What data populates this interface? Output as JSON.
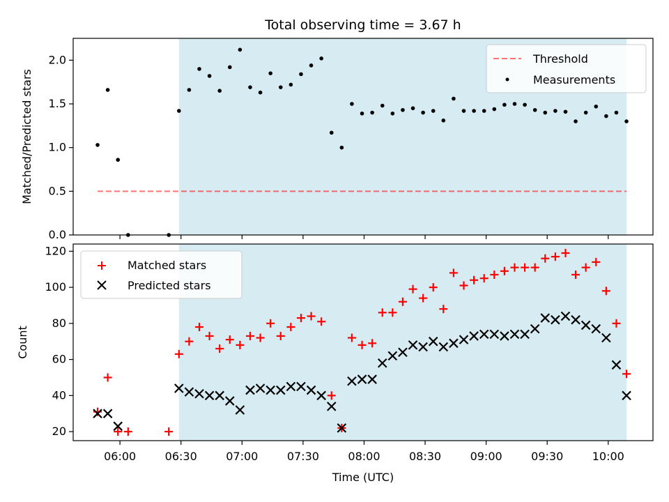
{
  "chart_data": [
    {
      "type": "scatter",
      "title": "Total observing time = 3.67 h",
      "xlabel": "",
      "ylabel": "Matched/Predicted stars",
      "ylim": [
        0,
        2.25
      ],
      "yticks": [
        "0.0",
        "0.5",
        "1.0",
        "1.5",
        "2.0"
      ],
      "yticks_values": [
        0,
        0.5,
        1.0,
        1.5,
        2.0
      ],
      "xlim": [
        "05:37",
        "10:22"
      ],
      "highlight_span": [
        "06:29",
        "10:09"
      ],
      "highlight_color": "#add8e6",
      "legend_position": "upper right",
      "threshold": {
        "name": "Threshold",
        "value": 0.5,
        "x_range": [
          "05:49",
          "10:09"
        ],
        "color": "#ff0000",
        "style": "dashed"
      },
      "series": [
        {
          "name": "Measurements",
          "color": "#000000",
          "marker": "dot",
          "x": [
            "05:49",
            "05:54",
            "05:59",
            "06:04",
            "06:24",
            "06:29",
            "06:34",
            "06:39",
            "06:44",
            "06:49",
            "06:54",
            "06:59",
            "07:04",
            "07:09",
            "07:14",
            "07:19",
            "07:24",
            "07:29",
            "07:34",
            "07:39",
            "07:44",
            "07:49",
            "07:54",
            "07:59",
            "08:04",
            "08:09",
            "08:14",
            "08:19",
            "08:24",
            "08:29",
            "08:34",
            "08:39",
            "08:44",
            "08:49",
            "08:54",
            "08:59",
            "09:04",
            "09:09",
            "09:14",
            "09:19",
            "09:24",
            "09:29",
            "09:34",
            "09:39",
            "09:44",
            "09:49",
            "09:54",
            "09:59",
            "10:04",
            "10:09"
          ],
          "y": [
            1.03,
            1.66,
            0.86,
            0.0,
            0.0,
            1.42,
            1.66,
            1.9,
            1.82,
            1.65,
            1.92,
            2.12,
            1.69,
            1.63,
            1.85,
            1.69,
            1.72,
            1.84,
            1.94,
            2.02,
            1.17,
            1.0,
            1.5,
            1.39,
            1.4,
            1.48,
            1.39,
            1.43,
            1.45,
            1.4,
            1.42,
            1.31,
            1.56,
            1.42,
            1.42,
            1.42,
            1.44,
            1.49,
            1.5,
            1.49,
            1.43,
            1.4,
            1.42,
            1.41,
            1.3,
            1.4,
            1.47,
            1.36,
            1.4,
            1.3
          ]
        }
      ]
    },
    {
      "type": "scatter",
      "title": "",
      "xlabel": "Time (UTC)",
      "ylabel": "Count",
      "ylim": [
        15,
        124
      ],
      "yticks": [
        "20",
        "40",
        "60",
        "80",
        "100",
        "120"
      ],
      "yticks_values": [
        20,
        40,
        60,
        80,
        100,
        120
      ],
      "xlim": [
        "05:37",
        "10:22"
      ],
      "xticks": [
        "06:00",
        "06:30",
        "07:00",
        "07:30",
        "08:00",
        "08:30",
        "09:00",
        "09:30",
        "10:00"
      ],
      "highlight_span": [
        "06:29",
        "10:09"
      ],
      "highlight_color": "#add8e6",
      "legend_position": "upper left",
      "series": [
        {
          "name": "Matched stars",
          "color": "#ff0000",
          "marker": "plus",
          "x": [
            "05:49",
            "05:54",
            "05:59",
            "06:04",
            "06:24",
            "06:29",
            "06:34",
            "06:39",
            "06:44",
            "06:49",
            "06:54",
            "06:59",
            "07:04",
            "07:09",
            "07:14",
            "07:19",
            "07:24",
            "07:29",
            "07:34",
            "07:39",
            "07:44",
            "07:49",
            "07:54",
            "07:59",
            "08:04",
            "08:09",
            "08:14",
            "08:19",
            "08:24",
            "08:29",
            "08:34",
            "08:39",
            "08:44",
            "08:49",
            "08:54",
            "08:59",
            "09:04",
            "09:09",
            "09:14",
            "09:19",
            "09:24",
            "09:29",
            "09:34",
            "09:39",
            "09:44",
            "09:49",
            "09:54",
            "09:59",
            "10:04",
            "10:09"
          ],
          "y": [
            31,
            50,
            20,
            20,
            20,
            63,
            70,
            78,
            73,
            66,
            71,
            68,
            73,
            72,
            80,
            73,
            78,
            83,
            84,
            81,
            40,
            22,
            72,
            68,
            69,
            86,
            86,
            92,
            99,
            94,
            100,
            88,
            108,
            101,
            104,
            105,
            107,
            109,
            111,
            111,
            111,
            116,
            117,
            119,
            107,
            111,
            114,
            98,
            80,
            52
          ]
        },
        {
          "name": "Predicted stars",
          "color": "#000000",
          "marker": "x",
          "x": [
            "05:49",
            "05:54",
            "05:59",
            "06:29",
            "06:34",
            "06:39",
            "06:44",
            "06:49",
            "06:54",
            "06:59",
            "07:04",
            "07:09",
            "07:14",
            "07:19",
            "07:24",
            "07:29",
            "07:34",
            "07:39",
            "07:44",
            "07:49",
            "07:54",
            "07:59",
            "08:04",
            "08:09",
            "08:14",
            "08:19",
            "08:24",
            "08:29",
            "08:34",
            "08:39",
            "08:44",
            "08:49",
            "08:54",
            "08:59",
            "09:04",
            "09:09",
            "09:14",
            "09:19",
            "09:24",
            "09:29",
            "09:34",
            "09:39",
            "09:44",
            "09:49",
            "09:54",
            "09:59",
            "10:04",
            "10:09"
          ],
          "y": [
            30,
            30,
            23,
            44,
            42,
            41,
            40,
            40,
            37,
            32,
            43,
            44,
            43,
            43,
            45,
            45,
            43,
            40,
            34,
            22,
            48,
            49,
            49,
            58,
            62,
            64,
            68,
            67,
            70,
            67,
            69,
            71,
            73,
            74,
            74,
            73,
            74,
            74,
            77,
            83,
            82,
            84,
            82,
            79,
            77,
            72,
            57,
            40
          ]
        }
      ]
    }
  ]
}
